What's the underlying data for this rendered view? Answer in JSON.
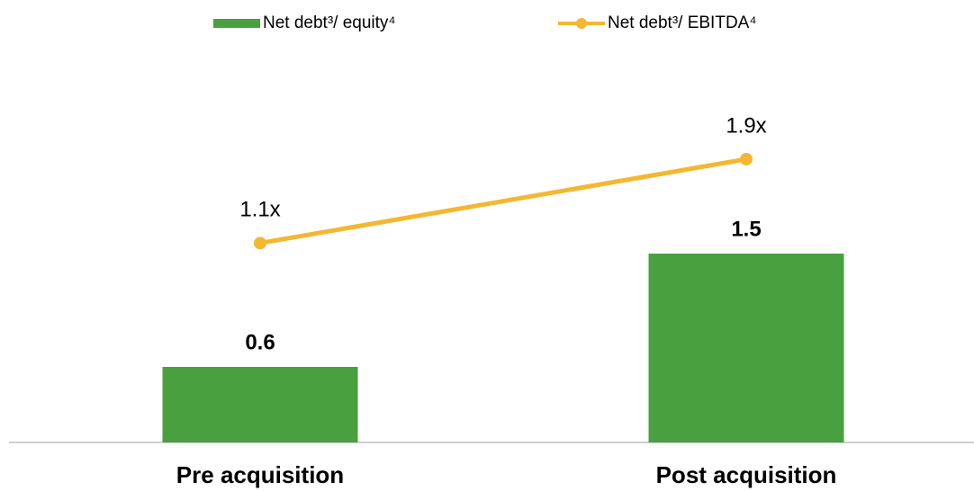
{
  "chart_data": {
    "type": "bar",
    "categories": [
      "Pre acquisition",
      "Post acquisition"
    ],
    "series": [
      {
        "name": "Net debt³/ equity⁴",
        "type": "bar",
        "color": "#48a13e",
        "values": [
          0.6,
          1.5
        ]
      },
      {
        "name": "Net debt³/ EBITDA⁴",
        "type": "line",
        "axis": "y2",
        "color": "#f4b731",
        "values": [
          1.1,
          1.9
        ],
        "value_labels": [
          "1.1x",
          "1.9x"
        ]
      }
    ],
    "ylim": [
      0,
      2.5
    ],
    "y2lim": [
      -0.8,
      2.2
    ],
    "legend": "top"
  }
}
